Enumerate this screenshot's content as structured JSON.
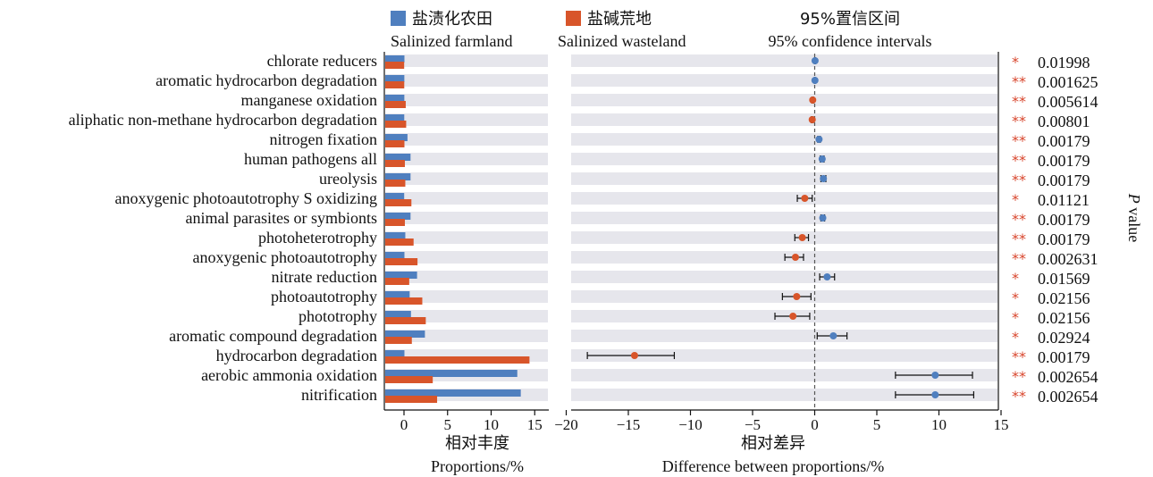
{
  "legend": {
    "farmland_cn": "盐渍化农田",
    "farmland_en": "Salinized farmland",
    "wasteland_cn": "盐碱荒地",
    "wasteland_en": "Salinized wasteland",
    "ci_cn": "95%置信区间",
    "ci_en": "95% confidence intervals"
  },
  "colors": {
    "farmland": "#4f7fbf",
    "wasteland": "#d8552a",
    "stripe": "#e6e6ec",
    "star": "#d8452c"
  },
  "chart_data": [
    {
      "type": "bar",
      "orientation": "horizontal",
      "categories": [
        "chlorate reducers",
        "aromatic hydrocarbon degradation",
        "manganese oxidation",
        "aliphatic non-methane hydrocarbon degradation",
        "nitrogen fixation",
        "human pathogens all",
        "ureolysis",
        "anoxygenic photoautotrophy S oxidizing",
        "animal parasites or symbionts",
        "photoheterotrophy",
        "anoxygenic photoautotrophy",
        "nitrate reduction",
        "photoautotrophy",
        "phototrophy",
        "aromatic compound degradation",
        "hydrocarbon degradation",
        "aerobic ammonia oxidation",
        "nitrification"
      ],
      "series": [
        {
          "name": "Salinized farmland",
          "values": [
            0.05,
            0.04,
            0.04,
            0.03,
            0.4,
            0.75,
            0.75,
            0.02,
            0.75,
            0.15,
            0.05,
            1.5,
            0.65,
            0.8,
            2.4,
            0.05,
            13.0,
            13.4
          ]
        },
        {
          "name": "Salinized wasteland",
          "values": [
            0.02,
            0.03,
            0.2,
            0.25,
            0.05,
            0.1,
            0.15,
            0.85,
            0.1,
            1.1,
            1.55,
            0.6,
            2.1,
            2.5,
            0.9,
            14.4,
            3.3,
            3.8
          ]
        }
      ],
      "xlim": [
        -2,
        16
      ],
      "xticks": [
        "0",
        "5",
        "10",
        "15"
      ],
      "xlabel_cn": "相对丰度",
      "xlabel_en": "Proportions/%"
    },
    {
      "type": "scatter",
      "subtype": "errorbar",
      "categories": [
        "chlorate reducers",
        "aromatic hydrocarbon degradation",
        "manganese oxidation",
        "aliphatic non-methane hydrocarbon degradation",
        "nitrogen fixation",
        "human pathogens all",
        "ureolysis",
        "anoxygenic photoautotrophy S oxidizing",
        "animal parasites or symbionts",
        "photoheterotrophy",
        "anoxygenic photoautotrophy",
        "nitrate reduction",
        "photoautotrophy",
        "phototrophy",
        "aromatic compound degradation",
        "hydrocarbon degradation",
        "aerobic ammonia oxidation",
        "nitrification"
      ],
      "diff": [
        0.03,
        0.02,
        -0.16,
        -0.2,
        0.35,
        0.6,
        0.7,
        -0.8,
        0.65,
        -1.0,
        -1.55,
        1.0,
        -1.45,
        -1.75,
        1.5,
        -14.5,
        9.7,
        9.7
      ],
      "ci_low": [
        0.0,
        0.0,
        -0.22,
        -0.27,
        0.25,
        0.45,
        0.5,
        -1.4,
        0.5,
        -1.6,
        -2.4,
        0.4,
        -2.6,
        -3.2,
        0.2,
        -18.3,
        6.5,
        6.5
      ],
      "ci_high": [
        0.06,
        0.04,
        -0.1,
        -0.13,
        0.45,
        0.75,
        0.9,
        -0.2,
        0.8,
        -0.5,
        -0.9,
        1.6,
        -0.3,
        -0.4,
        2.6,
        -11.3,
        12.7,
        12.8
      ],
      "xlim": [
        -21,
        15
      ],
      "xticks": [
        "−20",
        "−15",
        "−10",
        "−5",
        "0",
        "5",
        "10",
        "15"
      ],
      "xlabel_cn": "相对差异",
      "xlabel_en": "Difference between proportions/%",
      "p_values": [
        "0.01998",
        "0.001625",
        "0.005614",
        "0.00801",
        "0.00179",
        "0.00179",
        "0.00179",
        "0.01121",
        "0.00179",
        "0.00179",
        "0.002631",
        "0.01569",
        "0.02156",
        "0.02156",
        "0.02924",
        "0.00179",
        "0.002654",
        "0.002654"
      ],
      "significance": [
        "*",
        "**",
        "**",
        "**",
        "**",
        "**",
        "**",
        "*",
        "**",
        "**",
        "**",
        "*",
        "*",
        "*",
        "*",
        "**",
        "**",
        "**"
      ],
      "ylabel_italic": "P",
      "ylabel_rest": " value"
    }
  ]
}
